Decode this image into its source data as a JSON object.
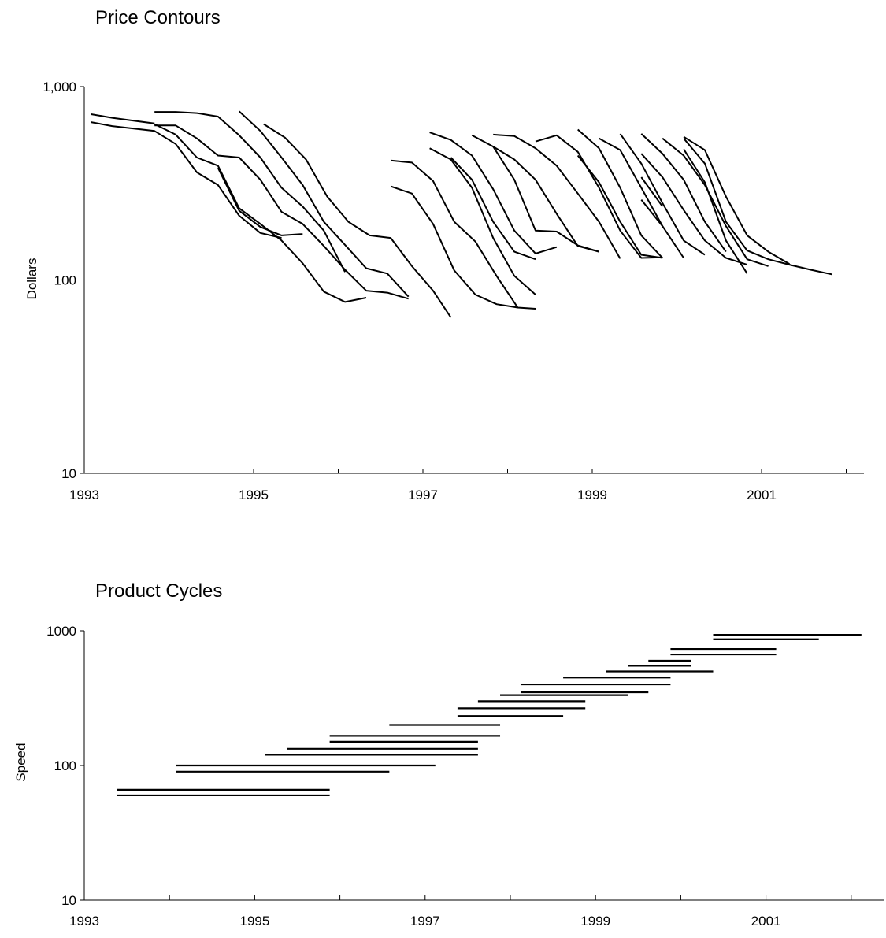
{
  "chart_data": [
    {
      "type": "line",
      "title": "Price Contours",
      "xlabel": "",
      "ylabel": "Dollars",
      "yscale": "log",
      "ylim": [
        10,
        1000
      ],
      "xlim": [
        1993,
        2002.3
      ],
      "x_tick_labels": [
        "1993",
        "1995",
        "1997",
        "1999",
        "2001"
      ],
      "y_tick_labels": [
        "10",
        "100",
        "1,000"
      ],
      "grid": false,
      "legend": "none",
      "series": [
        {
          "points": [
            [
              1993.08,
              720
            ],
            [
              1993.33,
              690
            ],
            [
              1993.6,
              665
            ],
            [
              1993.83,
              645
            ]
          ]
        },
        {
          "points": [
            [
              1993.08,
              655
            ],
            [
              1993.33,
              625
            ],
            [
              1993.83,
              590
            ],
            [
              1994.08,
              505
            ],
            [
              1994.33,
              360
            ],
            [
              1994.58,
              310
            ],
            [
              1994.83,
              215
            ],
            [
              1995.08,
              175
            ],
            [
              1995.33,
              165
            ]
          ]
        },
        {
          "points": [
            [
              1993.83,
              740
            ],
            [
              1994.08,
              740
            ],
            [
              1994.33,
              730
            ],
            [
              1994.58,
              700
            ],
            [
              1994.83,
              560
            ],
            [
              1995.08,
              430
            ],
            [
              1995.33,
              300
            ],
            [
              1995.58,
              240
            ],
            [
              1995.83,
              180
            ],
            [
              1996.08,
              110
            ]
          ]
        },
        {
          "points": [
            [
              1993.83,
              630
            ],
            [
              1994.08,
              630
            ],
            [
              1994.33,
              540
            ],
            [
              1994.58,
              440
            ],
            [
              1994.83,
              430
            ],
            [
              1995.08,
              330
            ],
            [
              1995.33,
              225
            ],
            [
              1995.58,
              195
            ],
            [
              1995.83,
              150
            ],
            [
              1996.08,
              113
            ],
            [
              1996.33,
              88
            ],
            [
              1996.58,
              86
            ],
            [
              1996.83,
              80
            ]
          ]
        },
        {
          "points": [
            [
              1993.83,
              640
            ],
            [
              1994.08,
              565
            ],
            [
              1994.33,
              430
            ],
            [
              1994.58,
              390
            ],
            [
              1994.83,
              235
            ],
            [
              1995.08,
              195
            ],
            [
              1995.33,
              160
            ],
            [
              1995.58,
              122
            ],
            [
              1995.83,
              87
            ],
            [
              1996.08,
              77
            ],
            [
              1996.33,
              81
            ]
          ]
        },
        {
          "points": [
            [
              1994.58,
              380
            ],
            [
              1994.83,
              228
            ],
            [
              1995.08,
              188
            ],
            [
              1995.33,
              170
            ],
            [
              1995.58,
              173
            ]
          ]
        },
        {
          "points": [
            [
              1994.83,
              745
            ],
            [
              1995.08,
              590
            ],
            [
              1995.33,
              430
            ],
            [
              1995.58,
              310
            ],
            [
              1995.83,
              200
            ],
            [
              1996.08,
              152
            ],
            [
              1996.33,
              115
            ],
            [
              1996.58,
              108
            ],
            [
              1996.83,
              82
            ]
          ]
        },
        {
          "points": [
            [
              1995.12,
              640
            ],
            [
              1995.37,
              545
            ],
            [
              1995.62,
              420
            ],
            [
              1995.87,
              270
            ],
            [
              1996.12,
              200
            ],
            [
              1996.37,
              170
            ],
            [
              1996.62,
              165
            ],
            [
              1996.87,
              118
            ],
            [
              1997.12,
              88
            ],
            [
              1997.33,
              64
            ]
          ]
        },
        {
          "points": [
            [
              1996.62,
              415
            ],
            [
              1996.87,
              405
            ],
            [
              1997.12,
              325
            ],
            [
              1997.37,
              200
            ],
            [
              1997.62,
              158
            ],
            [
              1997.87,
              105
            ],
            [
              1998.12,
              72
            ],
            [
              1998.33,
              71
            ]
          ]
        },
        {
          "points": [
            [
              1996.62,
              305
            ],
            [
              1996.87,
              280
            ],
            [
              1997.12,
              195
            ],
            [
              1997.37,
              112
            ],
            [
              1997.62,
              84
            ],
            [
              1997.87,
              75
            ],
            [
              1998.12,
              72
            ]
          ]
        },
        {
          "points": [
            [
              1997.08,
              580
            ],
            [
              1997.33,
              530
            ],
            [
              1997.58,
              440
            ],
            [
              1997.83,
              295
            ],
            [
              1998.08,
              180
            ],
            [
              1998.33,
              137
            ],
            [
              1998.58,
              148
            ]
          ]
        },
        {
          "points": [
            [
              1997.08,
              480
            ],
            [
              1997.33,
              420
            ],
            [
              1997.58,
              300
            ],
            [
              1997.83,
              165
            ],
            [
              1998.08,
              105
            ],
            [
              1998.33,
              84
            ]
          ]
        },
        {
          "points": [
            [
              1997.33,
              430
            ],
            [
              1997.58,
              330
            ],
            [
              1997.83,
              200
            ],
            [
              1998.08,
              140
            ],
            [
              1998.33,
              128
            ]
          ]
        },
        {
          "points": [
            [
              1997.58,
              560
            ],
            [
              1997.83,
              490
            ],
            [
              1998.08,
              330
            ],
            [
              1998.33,
              180
            ],
            [
              1998.58,
              178
            ],
            [
              1998.83,
              151
            ],
            [
              1999.08,
              140
            ]
          ]
        },
        {
          "points": [
            [
              1997.83,
              565
            ],
            [
              1998.08,
              555
            ],
            [
              1998.33,
              480
            ],
            [
              1998.58,
              390
            ],
            [
              1998.83,
              280
            ],
            [
              1999.08,
              200
            ],
            [
              1999.33,
              129
            ]
          ]
        },
        {
          "points": [
            [
              1997.83,
              490
            ],
            [
              1998.08,
              420
            ],
            [
              1998.33,
              330
            ],
            [
              1998.58,
              220
            ],
            [
              1998.83,
              150
            ],
            [
              1999.08,
              140
            ]
          ]
        },
        {
          "points": [
            [
              1998.33,
              520
            ],
            [
              1998.58,
              560
            ],
            [
              1998.83,
              460
            ],
            [
              1999.08,
              300
            ],
            [
              1999.33,
              180
            ],
            [
              1999.58,
              130
            ],
            [
              1999.83,
              131
            ]
          ]
        },
        {
          "points": [
            [
              1998.83,
              600
            ],
            [
              1999.08,
              480
            ],
            [
              1999.33,
              300
            ],
            [
              1999.58,
              170
            ],
            [
              1999.83,
              130
            ]
          ]
        },
        {
          "points": [
            [
              1998.83,
              440
            ],
            [
              1999.08,
              320
            ],
            [
              1999.33,
              200
            ],
            [
              1999.58,
              135
            ],
            [
              1999.83,
              130
            ]
          ]
        },
        {
          "points": [
            [
              1999.08,
              540
            ],
            [
              1999.33,
              470
            ],
            [
              1999.58,
              300
            ],
            [
              1999.83,
              190
            ],
            [
              2000.08,
              130
            ]
          ]
        },
        {
          "points": [
            [
              1999.33,
              570
            ],
            [
              1999.58,
              400
            ],
            [
              1999.83,
              250
            ],
            [
              2000.08,
              160
            ],
            [
              2000.33,
              135
            ]
          ]
        },
        {
          "points": [
            [
              1999.58,
              570
            ],
            [
              1999.83,
              450
            ],
            [
              2000.08,
              330
            ],
            [
              2000.33,
              200
            ],
            [
              2000.58,
              140
            ]
          ]
        },
        {
          "points": [
            [
              1999.58,
              450
            ],
            [
              1999.83,
              340
            ],
            [
              2000.08,
              230
            ],
            [
              2000.33,
              160
            ],
            [
              2000.58,
              130
            ],
            [
              2000.83,
              120
            ]
          ]
        },
        {
          "points": [
            [
              1999.58,
              340
            ],
            [
              1999.83,
              240
            ]
          ]
        },
        {
          "points": [
            [
              1999.58,
              260
            ],
            [
              1999.83,
              190
            ]
          ]
        },
        {
          "points": [
            [
              1999.83,
              540
            ],
            [
              2000.08,
              440
            ],
            [
              2000.33,
              310
            ],
            [
              2000.58,
              190
            ],
            [
              2000.83,
              128
            ],
            [
              2001.08,
              118
            ]
          ]
        },
        {
          "points": [
            [
              2000.08,
              550
            ],
            [
              2000.33,
              470
            ],
            [
              2000.58,
              270
            ],
            [
              2000.83,
              170
            ],
            [
              2001.08,
              140
            ],
            [
              2001.33,
              121
            ]
          ]
        },
        {
          "points": [
            [
              2000.08,
              540
            ],
            [
              2000.33,
              400
            ],
            [
              2000.58,
              200
            ],
            [
              2000.83,
              142
            ],
            [
              2001.08,
              128
            ],
            [
              2001.33,
              120
            ],
            [
              2001.58,
              113
            ],
            [
              2001.83,
              107
            ]
          ]
        },
        {
          "points": [
            [
              2000.08,
              475
            ],
            [
              2000.33,
              320
            ],
            [
              2000.58,
              160
            ],
            [
              2000.83,
              108
            ]
          ]
        }
      ]
    },
    {
      "type": "range",
      "title": "Product Cycles",
      "xlabel": "",
      "ylabel": "Speed",
      "yscale": "log",
      "ylim": [
        10,
        1000
      ],
      "xlim": [
        1993,
        2002.4
      ],
      "x_tick_labels": [
        "1993",
        "1995",
        "1997",
        "1999",
        "2001"
      ],
      "y_tick_labels": [
        "10",
        "100",
        "1000"
      ],
      "grid": false,
      "legend": "none",
      "series": [
        {
          "start": 1993.38,
          "end": 1995.88,
          "speed": 60
        },
        {
          "start": 1993.38,
          "end": 1995.88,
          "speed": 66
        },
        {
          "start": 1994.08,
          "end": 1996.58,
          "speed": 90
        },
        {
          "start": 1994.08,
          "end": 1997.12,
          "speed": 100
        },
        {
          "start": 1995.12,
          "end": 1997.62,
          "speed": 120
        },
        {
          "start": 1995.38,
          "end": 1997.62,
          "speed": 133
        },
        {
          "start": 1995.88,
          "end": 1997.62,
          "speed": 150
        },
        {
          "start": 1995.88,
          "end": 1997.88,
          "speed": 166
        },
        {
          "start": 1996.58,
          "end": 1997.88,
          "speed": 200
        },
        {
          "start": 1997.38,
          "end": 1998.62,
          "speed": 233
        },
        {
          "start": 1997.38,
          "end": 1998.88,
          "speed": 266
        },
        {
          "start": 1997.62,
          "end": 1998.88,
          "speed": 300
        },
        {
          "start": 1997.88,
          "end": 1999.38,
          "speed": 333
        },
        {
          "start": 1998.12,
          "end": 1999.62,
          "speed": 350
        },
        {
          "start": 1998.12,
          "end": 1999.88,
          "speed": 400
        },
        {
          "start": 1998.62,
          "end": 1999.88,
          "speed": 450
        },
        {
          "start": 1999.12,
          "end": 2000.38,
          "speed": 500
        },
        {
          "start": 1999.38,
          "end": 2000.12,
          "speed": 550
        },
        {
          "start": 1999.62,
          "end": 2000.12,
          "speed": 600
        },
        {
          "start": 1999.88,
          "end": 2001.12,
          "speed": 667
        },
        {
          "start": 1999.88,
          "end": 2001.12,
          "speed": 733
        },
        {
          "start": 2000.38,
          "end": 2001.62,
          "speed": 866
        },
        {
          "start": 2000.38,
          "end": 2002.12,
          "speed": 933
        }
      ]
    }
  ]
}
